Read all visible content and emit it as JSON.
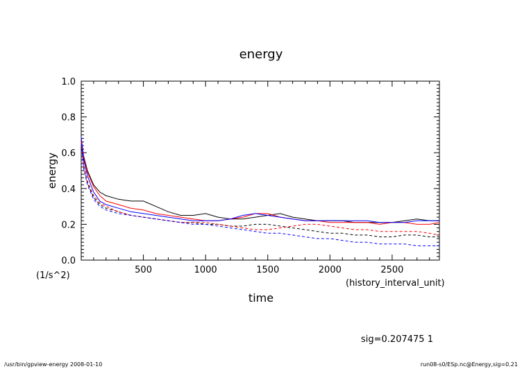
{
  "chart_data": {
    "type": "line",
    "title": "energy",
    "xlabel": "time",
    "x_units": "(history_interval_unit)",
    "ylabel": "energy",
    "y_units": "(1/s^2)",
    "xlim": [
      0,
      2880
    ],
    "ylim": [
      0,
      1.0
    ],
    "xticks": [
      500,
      1000,
      1500,
      2000,
      2500
    ],
    "yticks": [
      0.0,
      0.2,
      0.4,
      0.6,
      0.8,
      1.0
    ],
    "ytick_labels": [
      "0.0",
      "0.2",
      "0.4",
      "0.6",
      "0.8",
      "1.0"
    ],
    "grid": false,
    "legend": "none",
    "annotation": "sig=0.207475 1",
    "footer_left": "/usr/bin/gpview-energy  2008-01-10",
    "footer_right": "run08-s0/ESp.nc@Energy,sig=0.21",
    "series": [
      {
        "color": "#000000",
        "dash": "solid",
        "x": [
          0,
          20,
          50,
          100,
          150,
          200,
          300,
          400,
          500,
          600,
          700,
          800,
          900,
          1000,
          1100,
          1200,
          1300,
          1400,
          1500,
          1600,
          1700,
          1800,
          1900,
          2000,
          2100,
          2200,
          2300,
          2400,
          2500,
          2600,
          2700,
          2800,
          2880
        ],
        "y": [
          0.68,
          0.58,
          0.5,
          0.42,
          0.38,
          0.36,
          0.34,
          0.33,
          0.33,
          0.3,
          0.27,
          0.25,
          0.25,
          0.26,
          0.24,
          0.23,
          0.23,
          0.24,
          0.25,
          0.26,
          0.24,
          0.23,
          0.22,
          0.22,
          0.22,
          0.21,
          0.21,
          0.21,
          0.21,
          0.22,
          0.23,
          0.22,
          0.22
        ]
      },
      {
        "color": "#ff0000",
        "dash": "solid",
        "x": [
          0,
          20,
          50,
          100,
          150,
          200,
          300,
          400,
          500,
          600,
          700,
          800,
          900,
          1000,
          1100,
          1200,
          1300,
          1400,
          1500,
          1600,
          1700,
          1800,
          1900,
          2000,
          2100,
          2200,
          2300,
          2400,
          2500,
          2600,
          2700,
          2800,
          2880
        ],
        "y": [
          0.68,
          0.57,
          0.49,
          0.41,
          0.36,
          0.33,
          0.31,
          0.29,
          0.28,
          0.26,
          0.25,
          0.24,
          0.23,
          0.22,
          0.22,
          0.23,
          0.24,
          0.26,
          0.26,
          0.24,
          0.23,
          0.22,
          0.22,
          0.21,
          0.21,
          0.21,
          0.21,
          0.2,
          0.21,
          0.21,
          0.2,
          0.2,
          0.21
        ]
      },
      {
        "color": "#0000ff",
        "dash": "solid",
        "x": [
          0,
          20,
          50,
          100,
          150,
          200,
          300,
          400,
          500,
          600,
          700,
          800,
          900,
          1000,
          1100,
          1200,
          1300,
          1400,
          1500,
          1600,
          1700,
          1800,
          1900,
          2000,
          2100,
          2200,
          2300,
          2400,
          2500,
          2600,
          2700,
          2800,
          2880
        ],
        "y": [
          0.69,
          0.56,
          0.47,
          0.38,
          0.33,
          0.31,
          0.29,
          0.27,
          0.26,
          0.25,
          0.24,
          0.23,
          0.22,
          0.22,
          0.22,
          0.23,
          0.25,
          0.26,
          0.25,
          0.24,
          0.23,
          0.22,
          0.22,
          0.22,
          0.22,
          0.22,
          0.22,
          0.21,
          0.21,
          0.21,
          0.22,
          0.22,
          0.22
        ]
      },
      {
        "color": "#000000",
        "dash": "dashed",
        "x": [
          0,
          20,
          50,
          100,
          150,
          200,
          300,
          400,
          500,
          600,
          700,
          800,
          900,
          1000,
          1100,
          1200,
          1300,
          1400,
          1500,
          1600,
          1700,
          1800,
          1900,
          2000,
          2100,
          2200,
          2300,
          2400,
          2500,
          2600,
          2700,
          2800,
          2880
        ],
        "y": [
          0.66,
          0.52,
          0.43,
          0.35,
          0.31,
          0.29,
          0.27,
          0.25,
          0.24,
          0.23,
          0.22,
          0.21,
          0.21,
          0.2,
          0.2,
          0.19,
          0.19,
          0.2,
          0.2,
          0.19,
          0.18,
          0.17,
          0.16,
          0.15,
          0.15,
          0.14,
          0.14,
          0.13,
          0.13,
          0.14,
          0.14,
          0.13,
          0.13
        ]
      },
      {
        "color": "#ff0000",
        "dash": "dashed",
        "x": [
          0,
          20,
          50,
          100,
          150,
          200,
          300,
          400,
          500,
          600,
          700,
          800,
          900,
          1000,
          1100,
          1200,
          1300,
          1400,
          1500,
          1600,
          1700,
          1800,
          1900,
          2000,
          2100,
          2200,
          2300,
          2400,
          2500,
          2600,
          2700,
          2800,
          2880
        ],
        "y": [
          0.66,
          0.53,
          0.44,
          0.36,
          0.32,
          0.3,
          0.27,
          0.25,
          0.24,
          0.23,
          0.22,
          0.21,
          0.21,
          0.21,
          0.2,
          0.19,
          0.18,
          0.17,
          0.17,
          0.18,
          0.19,
          0.2,
          0.2,
          0.19,
          0.18,
          0.17,
          0.17,
          0.16,
          0.16,
          0.16,
          0.16,
          0.15,
          0.14
        ]
      },
      {
        "color": "#0000ff",
        "dash": "dashed",
        "x": [
          0,
          20,
          50,
          100,
          150,
          200,
          300,
          400,
          500,
          600,
          700,
          800,
          900,
          1000,
          1100,
          1200,
          1300,
          1400,
          1500,
          1600,
          1700,
          1800,
          1900,
          2000,
          2100,
          2200,
          2300,
          2400,
          2500,
          2600,
          2700,
          2800,
          2880
        ],
        "y": [
          0.65,
          0.51,
          0.42,
          0.34,
          0.3,
          0.28,
          0.26,
          0.25,
          0.24,
          0.23,
          0.22,
          0.21,
          0.2,
          0.2,
          0.19,
          0.18,
          0.17,
          0.16,
          0.15,
          0.15,
          0.14,
          0.13,
          0.12,
          0.12,
          0.11,
          0.1,
          0.1,
          0.09,
          0.09,
          0.09,
          0.08,
          0.08,
          0.08
        ]
      }
    ]
  }
}
